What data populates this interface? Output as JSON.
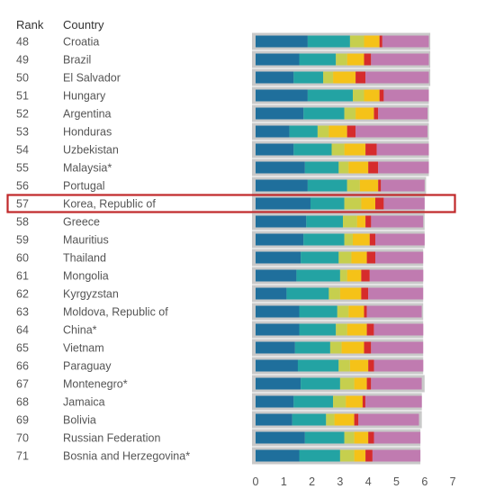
{
  "headers": {
    "rank": "Rank",
    "country": "Country"
  },
  "colors": {
    "segments": [
      "#1f6f9c",
      "#23a3a3",
      "#c6cf4e",
      "#f5c218",
      "#d62c2c",
      "#c07bb0"
    ],
    "ref_bar": "#c9c9c9",
    "highlight_border": "#c0282a"
  },
  "highlight_rank": "57",
  "chart_data": {
    "type": "bar",
    "orientation": "horizontal-stacked",
    "xlim": [
      0,
      7
    ],
    "x_ticks": [
      "0",
      "1",
      "2",
      "3",
      "4",
      "5",
      "6",
      "7"
    ],
    "rows": [
      {
        "rank": "48",
        "country": "Croatia",
        "segments": [
          1.85,
          1.5,
          0.5,
          0.55,
          0.1,
          1.65
        ],
        "ref": 6.2
      },
      {
        "rank": "49",
        "country": "Brazil",
        "segments": [
          1.55,
          1.3,
          0.4,
          0.6,
          0.25,
          2.05
        ],
        "ref": 6.2
      },
      {
        "rank": "50",
        "country": "El Salvador",
        "segments": [
          1.35,
          1.05,
          0.35,
          0.8,
          0.35,
          2.25
        ],
        "ref": 6.2
      },
      {
        "rank": "51",
        "country": "Hungary",
        "segments": [
          1.85,
          1.6,
          0.4,
          0.55,
          0.15,
          1.6
        ],
        "ref": 6.15
      },
      {
        "rank": "52",
        "country": "Argentina",
        "segments": [
          1.7,
          1.45,
          0.4,
          0.65,
          0.15,
          1.75
        ],
        "ref": 6.15
      },
      {
        "rank": "53",
        "country": "Honduras",
        "segments": [
          1.2,
          1.0,
          0.4,
          0.65,
          0.3,
          2.55
        ],
        "ref": 6.15
      },
      {
        "rank": "54",
        "country": "Uzbekistan",
        "segments": [
          1.35,
          1.35,
          0.45,
          0.75,
          0.4,
          1.85
        ],
        "ref": 6.15
      },
      {
        "rank": "55",
        "country": "Malaysia*",
        "segments": [
          1.75,
          1.2,
          0.35,
          0.7,
          0.35,
          1.8
        ],
        "ref": 6.15
      },
      {
        "rank": "56",
        "country": "Portugal",
        "segments": [
          1.85,
          1.4,
          0.45,
          0.65,
          0.1,
          1.55
        ],
        "ref": 6.05
      },
      {
        "rank": "57",
        "country": "Korea, Republic of",
        "segments": [
          1.95,
          1.2,
          0.6,
          0.5,
          0.3,
          1.45
        ],
        "ref": 6.0
      },
      {
        "rank": "58",
        "country": "Greece",
        "segments": [
          1.8,
          1.3,
          0.5,
          0.3,
          0.2,
          1.85
        ],
        "ref": 6.0
      },
      {
        "rank": "59",
        "country": "Mauritius",
        "segments": [
          1.7,
          1.45,
          0.3,
          0.6,
          0.2,
          1.75
        ],
        "ref": 6.0
      },
      {
        "rank": "60",
        "country": "Thailand",
        "segments": [
          1.6,
          1.35,
          0.45,
          0.55,
          0.3,
          1.7
        ],
        "ref": 5.95
      },
      {
        "rank": "61",
        "country": "Mongolia",
        "segments": [
          1.45,
          1.55,
          0.25,
          0.5,
          0.3,
          1.9
        ],
        "ref": 5.95
      },
      {
        "rank": "62",
        "country": "Kyrgyzstan",
        "segments": [
          1.1,
          1.5,
          0.4,
          0.75,
          0.25,
          1.95
        ],
        "ref": 5.95
      },
      {
        "rank": "63",
        "country": "Moldova, Republic of",
        "segments": [
          1.55,
          1.35,
          0.4,
          0.55,
          0.1,
          1.95
        ],
        "ref": 5.95
      },
      {
        "rank": "64",
        "country": "China*",
        "segments": [
          1.55,
          1.3,
          0.4,
          0.7,
          0.25,
          1.75
        ],
        "ref": 5.95
      },
      {
        "rank": "65",
        "country": "Vietnam",
        "segments": [
          1.4,
          1.25,
          0.4,
          0.8,
          0.25,
          1.85
        ],
        "ref": 5.95
      },
      {
        "rank": "66",
        "country": "Paraguay",
        "segments": [
          1.5,
          1.45,
          0.4,
          0.65,
          0.2,
          1.75
        ],
        "ref": 5.95
      },
      {
        "rank": "67",
        "country": "Montenegro*",
        "segments": [
          1.6,
          1.4,
          0.5,
          0.45,
          0.15,
          1.8
        ],
        "ref": 6.0
      },
      {
        "rank": "68",
        "country": "Jamaica",
        "segments": [
          1.35,
          1.4,
          0.45,
          0.6,
          0.1,
          2.0
        ],
        "ref": 5.9
      },
      {
        "rank": "69",
        "country": "Bolivia",
        "segments": [
          1.3,
          1.2,
          0.3,
          0.7,
          0.15,
          2.15
        ],
        "ref": 5.9
      },
      {
        "rank": "70",
        "country": "Russian Federation",
        "segments": [
          1.75,
          1.4,
          0.35,
          0.5,
          0.2,
          1.65
        ],
        "ref": 5.85
      },
      {
        "rank": "71",
        "country": "Bosnia and Herzegovina*",
        "segments": [
          1.55,
          1.45,
          0.5,
          0.4,
          0.25,
          1.7
        ],
        "ref": 5.85
      }
    ]
  }
}
